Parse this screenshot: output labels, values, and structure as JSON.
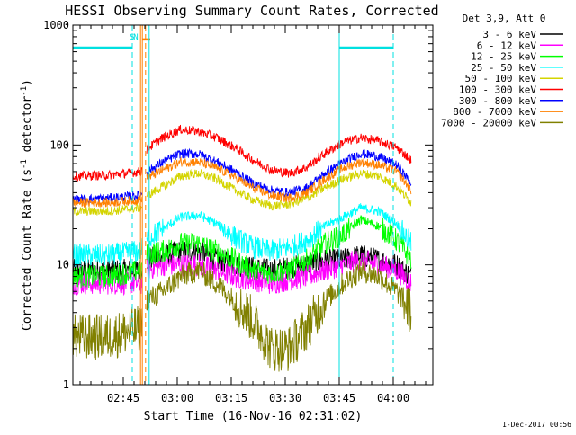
{
  "chart_data": {
    "type": "line",
    "title": "HESSI Observing Summary Count Rates, Corrected",
    "xlabel": "Start Time (16-Nov-16 02:31:02)",
    "ylabel_main": "Corrected Count Rate (s",
    "ylabel_sup1": "-1",
    "ylabel_mid": " detector",
    "ylabel_sup2": "-1",
    "ylabel_end": ")",
    "y_scale": "log",
    "ylim": [
      1,
      1000
    ],
    "xlim_minutes": [
      0,
      100
    ],
    "y_ticks": [
      {
        "value": 1,
        "label": "1"
      },
      {
        "value": 10,
        "label": "10"
      },
      {
        "value": 100,
        "label": "100"
      },
      {
        "value": 1000,
        "label": "1000"
      }
    ],
    "x_ticks": [
      {
        "minute": 14,
        "label": "02:45"
      },
      {
        "minute": 29,
        "label": "03:00"
      },
      {
        "minute": 44,
        "label": "03:15"
      },
      {
        "minute": 59,
        "label": "03:30"
      },
      {
        "minute": 74,
        "label": "03:45"
      },
      {
        "minute": 89,
        "label": "04:00"
      }
    ],
    "legend_header": "Det 3,9, Att 0",
    "legend_placement": "outside-right-top",
    "series": [
      {
        "name": "3 - 6 keV",
        "color": "#000000",
        "x": [
          0,
          10,
          19,
          20,
          25,
          30,
          35,
          40,
          45,
          50,
          55,
          60,
          65,
          70,
          75,
          80,
          85,
          90,
          94
        ],
        "y": [
          9,
          9,
          9,
          11,
          12,
          13,
          13,
          11,
          10,
          9.5,
          9,
          9.5,
          10,
          11,
          11,
          12,
          11,
          10,
          8
        ]
      },
      {
        "name": "6 - 12 keV",
        "color": "#ff00ff",
        "x": [
          0,
          10,
          19,
          20,
          25,
          30,
          35,
          40,
          45,
          50,
          55,
          60,
          65,
          70,
          75,
          80,
          85,
          90,
          94
        ],
        "y": [
          7,
          7,
          7,
          9,
          10,
          10,
          10,
          9,
          8,
          7.5,
          7,
          7.5,
          8,
          9,
          10,
          11,
          10,
          9,
          7
        ]
      },
      {
        "name": "12 - 25 keV",
        "color": "#00ff00",
        "x": [
          0,
          10,
          19,
          20,
          25,
          30,
          35,
          40,
          45,
          50,
          55,
          60,
          65,
          70,
          75,
          80,
          85,
          90,
          94
        ],
        "y": [
          8,
          8,
          9,
          12,
          13,
          15,
          15,
          13,
          11,
          9,
          8.5,
          9,
          11,
          15,
          18,
          24,
          21,
          16,
          11
        ]
      },
      {
        "name": "25 - 50 keV",
        "color": "#00ffff",
        "x": [
          0,
          10,
          19,
          20,
          25,
          30,
          35,
          40,
          45,
          50,
          55,
          60,
          65,
          70,
          75,
          80,
          85,
          90,
          94
        ],
        "y": [
          12,
          12,
          13,
          16,
          20,
          25,
          26,
          22,
          17,
          14,
          13,
          14,
          16,
          21,
          25,
          30,
          28,
          22,
          15
        ]
      },
      {
        "name": "50 - 100 keV",
        "color": "#d4d400",
        "x": [
          0,
          10,
          19,
          20,
          25,
          30,
          35,
          40,
          45,
          50,
          55,
          60,
          65,
          70,
          75,
          80,
          85,
          90,
          94
        ],
        "y": [
          28,
          28,
          30,
          37,
          45,
          55,
          58,
          52,
          42,
          35,
          31,
          32,
          36,
          44,
          52,
          58,
          55,
          45,
          33
        ]
      },
      {
        "name": "100 - 300 keV",
        "color": "#ff0000",
        "x": [
          0,
          10,
          19,
          20,
          25,
          30,
          35,
          40,
          45,
          50,
          55,
          60,
          65,
          70,
          75,
          80,
          85,
          90,
          94
        ],
        "y": [
          55,
          56,
          60,
          90,
          115,
          135,
          130,
          115,
          95,
          75,
          62,
          58,
          65,
          85,
          105,
          115,
          108,
          95,
          75
        ]
      },
      {
        "name": "300 - 800 keV",
        "color": "#0000ff",
        "x": [
          0,
          10,
          19,
          20,
          25,
          30,
          35,
          40,
          45,
          50,
          55,
          60,
          65,
          70,
          75,
          80,
          85,
          90,
          94
        ],
        "y": [
          35,
          36,
          38,
          58,
          72,
          85,
          84,
          72,
          60,
          48,
          42,
          40,
          44,
          58,
          72,
          85,
          80,
          68,
          48
        ]
      },
      {
        "name": "800 - 7000 keV",
        "color": "#ff8000",
        "x": [
          0,
          10,
          19,
          20,
          25,
          30,
          35,
          40,
          45,
          50,
          55,
          60,
          65,
          70,
          75,
          80,
          85,
          90,
          94
        ],
        "y": [
          33,
          33,
          35,
          52,
          62,
          72,
          72,
          64,
          54,
          44,
          38,
          36,
          40,
          52,
          64,
          72,
          68,
          60,
          42
        ]
      },
      {
        "name": "7000 - 20000 keV",
        "color": "#808000",
        "x": [
          0,
          10,
          19,
          20,
          25,
          30,
          35,
          40,
          45,
          50,
          55,
          60,
          65,
          70,
          75,
          80,
          85,
          90,
          94
        ],
        "y": [
          2.5,
          2.5,
          3,
          5,
          6,
          8,
          9,
          7,
          5,
          3.5,
          2,
          2,
          3,
          5,
          7,
          9,
          8,
          6,
          4
        ]
      }
    ],
    "attenuator_level": 650,
    "attenuator_segments": [
      {
        "from_minute": 0,
        "to_minute": 16.5
      },
      {
        "from_minute": 74,
        "to_minute": 89
      }
    ],
    "markers": [
      {
        "label": "S",
        "minute": 16.5,
        "color": "#00e0e0"
      },
      {
        "label": "N",
        "minute": 17.5,
        "color": "#00e0e0"
      }
    ],
    "vertical_lines": [
      {
        "minute": 16.5,
        "color": "#00e0e0",
        "dash": true
      },
      {
        "minute": 21.2,
        "color": "#00e0e0",
        "dash": false
      },
      {
        "minute": 74,
        "color": "#00e0e0",
        "dash": false
      },
      {
        "minute": 89,
        "color": "#00e0e0",
        "dash": true
      },
      {
        "minute": 18.8,
        "color": "#ff8000",
        "dash": false
      },
      {
        "minute": 19.3,
        "color": "#ff8000",
        "dash": false
      },
      {
        "minute": 20.2,
        "color": "#ff8000",
        "dash": true
      }
    ],
    "orange_bar": {
      "from_minute": 19.3,
      "to_minute": 21.5,
      "level": 760
    },
    "grid": false
  },
  "footer_timestamp": "1-Dec-2017 00:56"
}
